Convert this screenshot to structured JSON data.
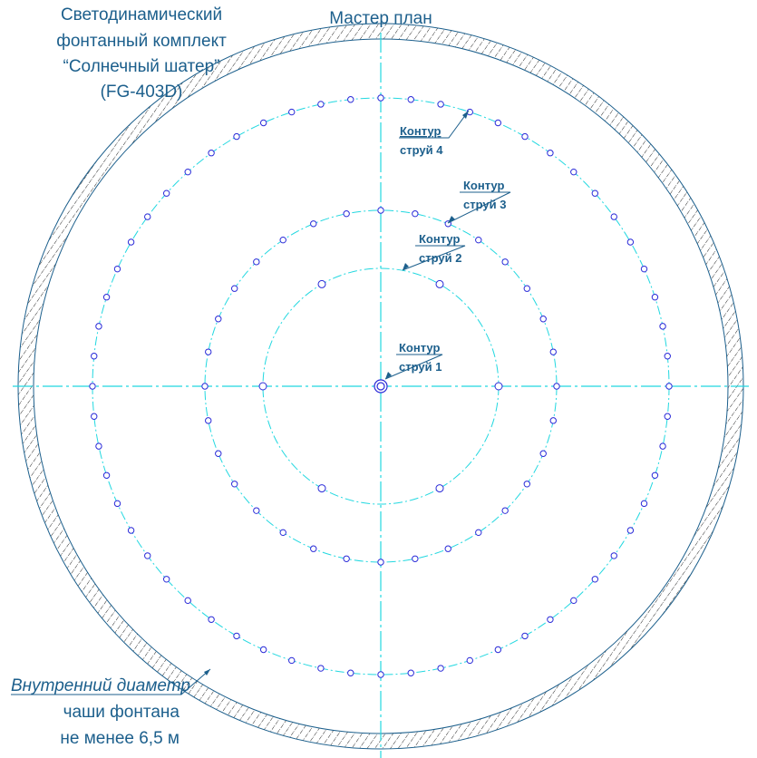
{
  "title_block": {
    "line1": "Светодинамический",
    "line2": "фонтанный комплект",
    "line3": "“Солнечный шатер”",
    "line4": "(FG-403D)"
  },
  "plan_title": "Мастер план",
  "contours": [
    {
      "label_a": "Контур",
      "label_b": "струй 1",
      "jets": 1
    },
    {
      "label_a": "Контур",
      "label_b": "струй 2",
      "jets": 6
    },
    {
      "label_a": "Контур",
      "label_b": "струй 3",
      "jets": 32
    },
    {
      "label_a": "Контур",
      "label_b": "струй 4",
      "jets": 60
    }
  ],
  "bowl_note": {
    "line1": "Внутренний диаметр",
    "line2": "чаши фонтана",
    "line3": "не менее 6,5 м"
  },
  "colors": {
    "text": "#1c5f8c",
    "axis": "#22d8e0",
    "jet": "#2a2ad8",
    "ring": "#1c5f8c"
  }
}
